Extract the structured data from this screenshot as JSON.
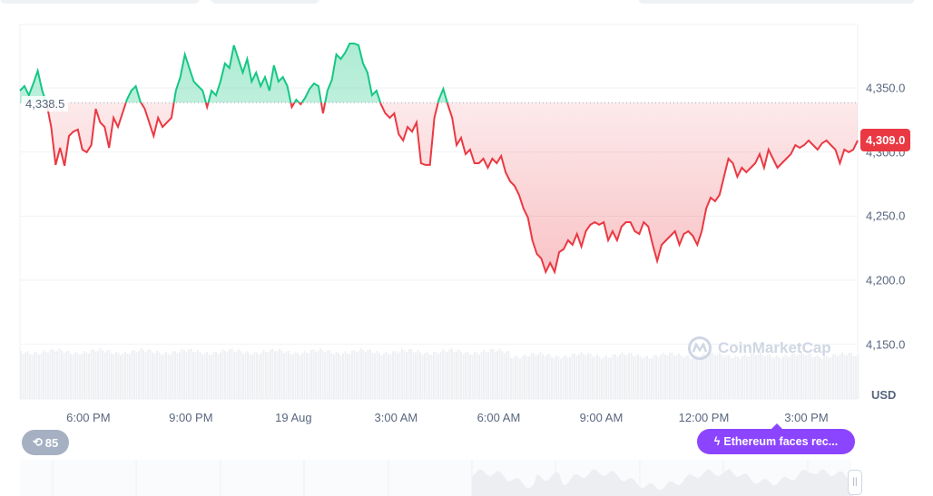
{
  "top_tabs": [
    {
      "name": "tab-1"
    },
    {
      "name": "tab-2"
    },
    {
      "name": "tab-3"
    }
  ],
  "chart_data": {
    "type": "area",
    "x_range": [
      "18 Aug 16:00",
      "19 Aug 16:30"
    ],
    "ylim": [
      4140,
      4395
    ],
    "y_ticks": [
      "4,350.0",
      "4,300.0",
      "4,250.0",
      "4,200.0",
      "4,150.0"
    ],
    "y_tick_values": [
      4350,
      4300,
      4250,
      4200,
      4150
    ],
    "x_ticks": [
      {
        "label": "6:00 PM",
        "hour": 18
      },
      {
        "label": "9:00 PM",
        "hour": 21
      },
      {
        "label": "19 Aug",
        "hour": 24
      },
      {
        "label": "3:00 AM",
        "hour": 27
      },
      {
        "label": "6:00 AM",
        "hour": 30
      },
      {
        "label": "9:00 AM",
        "hour": 33
      },
      {
        "label": "12:00 PM",
        "hour": 36
      },
      {
        "label": "3:00 PM",
        "hour": 39
      }
    ],
    "currency": "USD",
    "baseline": 4338.5,
    "baseline_label": "4,338.5",
    "current_price_label": "4,309.0",
    "colors": {
      "up": "#16c784",
      "down": "#ea3943"
    },
    "prices": [
      4347.9,
      4351.4,
      4344.3,
      4353.5,
      4363.4,
      4347.9,
      4337.3,
      4319.6,
      4289.9,
      4303.3,
      4289.2,
      4312.5,
      4316.0,
      4317.5,
      4301.9,
      4299.8,
      4305.4,
      4333.7,
      4323.1,
      4319.6,
      4303.3,
      4326.7,
      4319.6,
      4330.2,
      4340.8,
      4347.9,
      4351.4,
      4339.4,
      4333.7,
      4323.1,
      4312.5,
      4326.7,
      4319.6,
      4323.1,
      4326.7,
      4347.9,
      4358.5,
      4376.2,
      4365.6,
      4355.0,
      4351.4,
      4347.9,
      4335.1,
      4347.9,
      4344.3,
      4355.0,
      4369.1,
      4365.6,
      4383.3,
      4372.6,
      4362.0,
      4372.6,
      4355.0,
      4362.0,
      4351.4,
      4358.5,
      4347.9,
      4367.7,
      4355.0,
      4358.5,
      4351.4,
      4335.1,
      4340.8,
      4337.3,
      4342.2,
      4349.3,
      4353.5,
      4351.4,
      4330.2,
      4347.9,
      4356.4,
      4376.2,
      4372.6,
      4377.6,
      4384.7,
      4384.7,
      4383.3,
      4369.1,
      4362.0,
      4344.3,
      4347.9,
      4337.3,
      4330.2,
      4326.7,
      4330.2,
      4313.9,
      4309.0,
      4319.6,
      4316.0,
      4323.1,
      4291.3,
      4289.9,
      4289.9,
      4326.7,
      4340.8,
      4349.3,
      4337.3,
      4326.7,
      4305.4,
      4311.1,
      4298.4,
      4301.9,
      4291.3,
      4291.3,
      4294.8,
      4287.7,
      4294.8,
      4291.3,
      4296.9,
      4284.2,
      4277.1,
      4273.6,
      4266.5,
      4255.9,
      4248.8,
      4231.1,
      4220.5,
      4217.0,
      4206.4,
      4213.5,
      4206.4,
      4221.9,
      4224.1,
      4231.1,
      4227.6,
      4236.1,
      4226.2,
      4238.2,
      4243.2,
      4245.3,
      4243.2,
      4245.3,
      4231.1,
      4238.2,
      4231.1,
      4241.8,
      4245.3,
      4245.3,
      4238.2,
      4236.1,
      4245.3,
      4241.8,
      4227.6,
      4214.9,
      4227.6,
      4231.1,
      4234.7,
      4238.2,
      4227.6,
      4236.1,
      4238.2,
      4234.7,
      4227.6,
      4238.2,
      4255.9,
      4264.4,
      4261.6,
      4266.5,
      4280.7,
      4294.8,
      4291.3,
      4280.7,
      4287.7,
      4284.2,
      4287.7,
      4291.3,
      4298.4,
      4287.7,
      4301.9,
      4294.8,
      4287.7,
      4291.3,
      4294.8,
      4298.4,
      4305.4,
      4303.3,
      4305.4,
      4309.0,
      4305.4,
      4301.9,
      4306.8,
      4309.0,
      4305.4,
      4301.9,
      4291.3,
      4301.9,
      4299.8,
      4301.9,
      4309.0
    ]
  },
  "history_count": "85",
  "news_label": "Ethereum faces rec...",
  "watermark": "CoinMarketCap"
}
